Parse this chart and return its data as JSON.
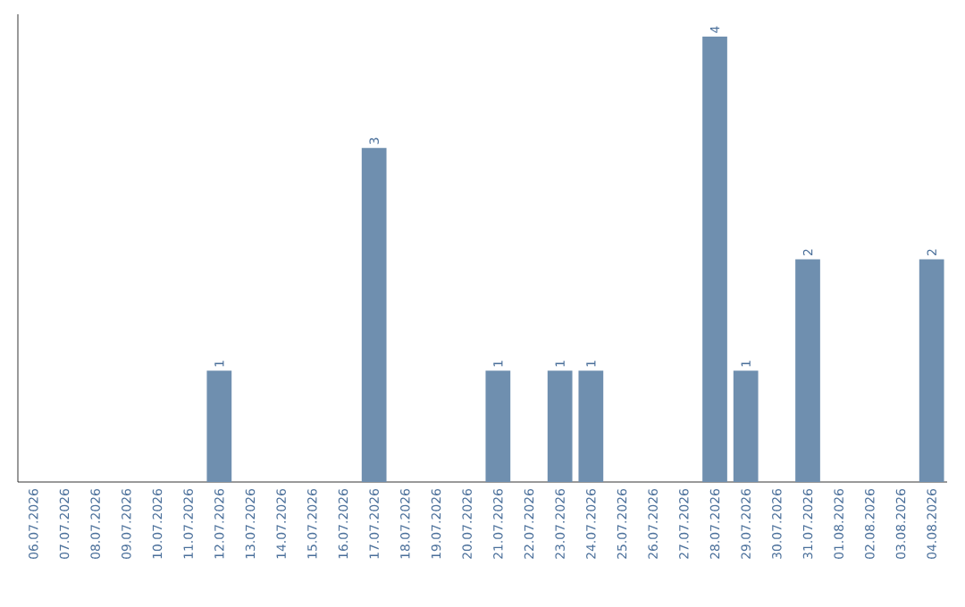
{
  "chart_data": {
    "type": "bar",
    "categories": [
      "06.07.2026",
      "07.07.2026",
      "08.07.2026",
      "09.07.2026",
      "10.07.2026",
      "11.07.2026",
      "12.07.2026",
      "13.07.2026",
      "14.07.2026",
      "15.07.2026",
      "16.07.2026",
      "17.07.2026",
      "18.07.2026",
      "19.07.2026",
      "20.07.2026",
      "21.07.2026",
      "22.07.2026",
      "23.07.2026",
      "24.07.2026",
      "25.07.2026",
      "26.07.2026",
      "27.07.2026",
      "28.07.2026",
      "29.07.2026",
      "30.07.2026",
      "31.07.2026",
      "01.08.2026",
      "02.08.2026",
      "03.08.2026",
      "04.08.2026"
    ],
    "values": [
      0,
      0,
      0,
      0,
      0,
      0,
      1,
      0,
      0,
      0,
      0,
      3,
      0,
      0,
      0,
      1,
      0,
      1,
      1,
      0,
      0,
      0,
      4,
      1,
      0,
      2,
      0,
      0,
      0,
      2
    ],
    "value_labels": [
      null,
      null,
      null,
      null,
      null,
      null,
      "1",
      null,
      null,
      null,
      null,
      "3",
      null,
      null,
      null,
      "1",
      null,
      "1",
      "1",
      null,
      null,
      null,
      "4",
      "1",
      null,
      "2",
      null,
      null,
      null,
      "2"
    ],
    "color": "#6f8faf",
    "tick_labels": "x"
  }
}
